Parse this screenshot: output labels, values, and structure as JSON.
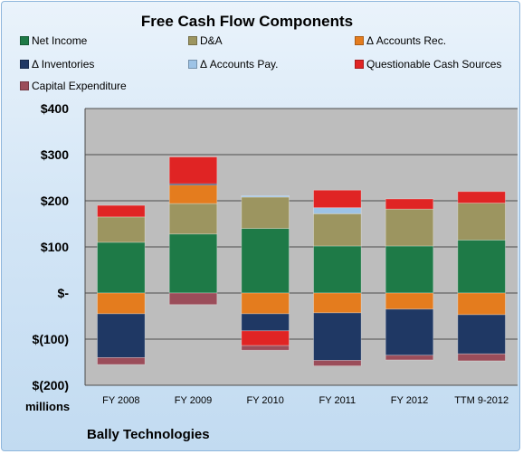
{
  "chart_data": {
    "type": "bar",
    "stacked": true,
    "title": "Free Cash Flow Components",
    "units_label": "millions",
    "footer": "Bally Technologies",
    "categories": [
      "FY 2008",
      "FY 2009",
      "FY 2010",
      "FY 2011",
      "FY 2012",
      "TTM 9-2012"
    ],
    "ylim": [
      -200,
      400
    ],
    "yticks": [
      -200,
      -100,
      0,
      100,
      200,
      300,
      400
    ],
    "ytick_labels": [
      "$(200)",
      "$(100)",
      "$-",
      "$100",
      "$200",
      "$300",
      "$400"
    ],
    "grid": true,
    "legend_position": "top",
    "series": [
      {
        "name": "Net Income",
        "color": "#1e7a47",
        "values": [
          110,
          128,
          140,
          102,
          102,
          115
        ]
      },
      {
        "name": "D&A",
        "color": "#9c9560",
        "values": [
          55,
          66,
          68,
          70,
          80,
          80
        ]
      },
      {
        "name": "Δ Accounts Rec.",
        "color": "#e47c1e",
        "values": [
          -45,
          40,
          -45,
          -43,
          -35,
          -47
        ]
      },
      {
        "name": "Δ Inventories",
        "color": "#1f3864",
        "values": [
          -95,
          3,
          -37,
          -103,
          -100,
          -85
        ]
      },
      {
        "name": "Δ Accounts Pay.",
        "color": "#9dc3e6",
        "values": [
          0,
          0,
          3,
          13,
          0,
          0
        ]
      },
      {
        "name": "Questionable Cash Sources",
        "color": "#e02424",
        "values": [
          25,
          58,
          -32,
          38,
          22,
          25
        ]
      },
      {
        "name": "Capital Expenditure",
        "color": "#9b4d5a",
        "values": [
          -15,
          -25,
          -10,
          -12,
          -10,
          -15
        ]
      }
    ]
  }
}
